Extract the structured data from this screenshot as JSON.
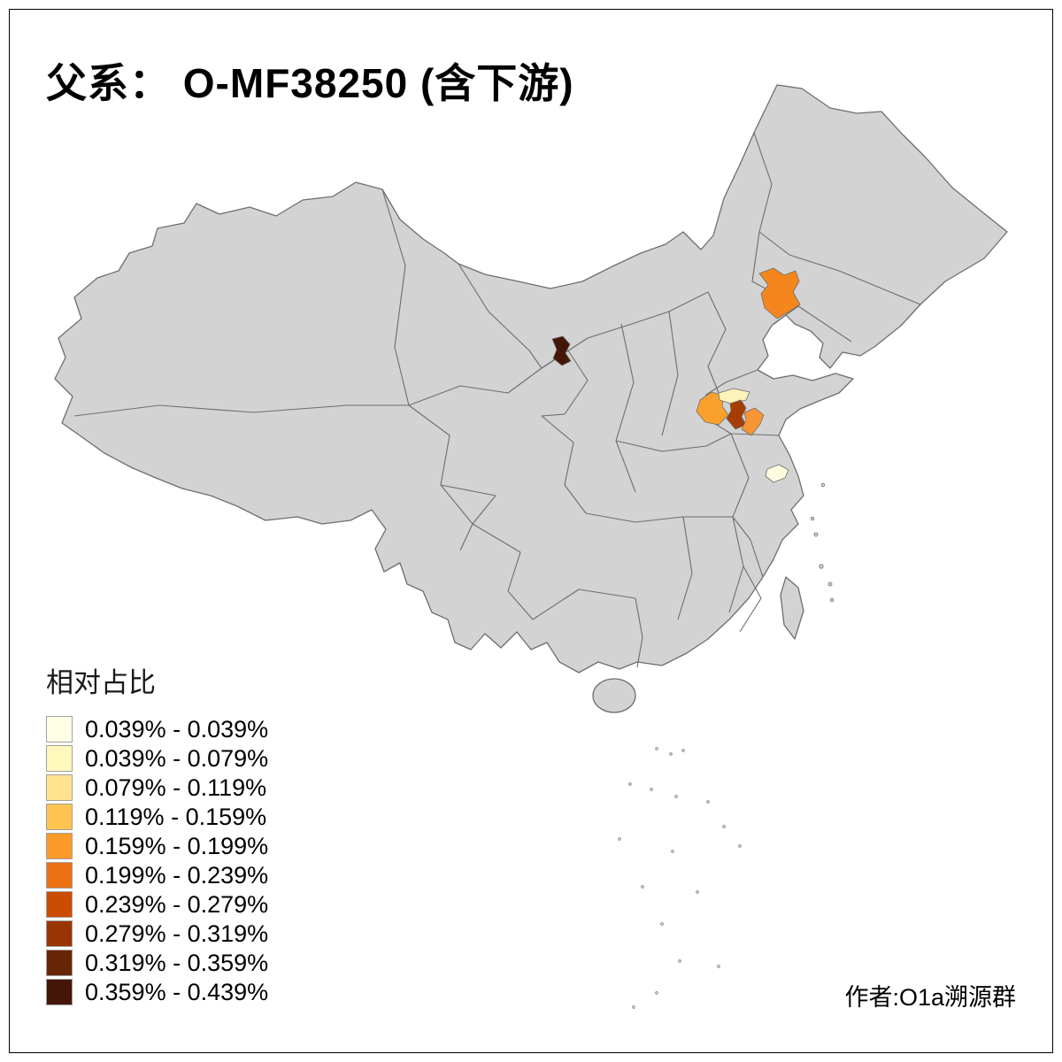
{
  "title": "父系： O-MF38250 (含下游)",
  "legend": {
    "title": "相对占比",
    "bins": [
      {
        "label": "0.039% - 0.039%",
        "color": "#FFFFE5"
      },
      {
        "label": "0.039% - 0.079%",
        "color": "#FFF7BC"
      },
      {
        "label": "0.079% - 0.119%",
        "color": "#FEE391"
      },
      {
        "label": "0.119% - 0.159%",
        "color": "#FEC44F"
      },
      {
        "label": "0.159% - 0.199%",
        "color": "#FB9A29"
      },
      {
        "label": "0.199% - 0.239%",
        "color": "#EC7014"
      },
      {
        "label": "0.239% - 0.279%",
        "color": "#CC4C02"
      },
      {
        "label": "0.279% - 0.319%",
        "color": "#993404"
      },
      {
        "label": "0.319% - 0.359%",
        "color": "#662506"
      },
      {
        "label": "0.359% - 0.439%",
        "color": "#451607"
      }
    ]
  },
  "credit": "作者:O1a溯源群",
  "map": {
    "land_fill": "#D3D3D3",
    "border_color": "#6E6E6E",
    "frame_color": "#000000",
    "regions": [
      {
        "id": "region-1",
        "color": "#F5861D"
      },
      {
        "id": "region-2",
        "color": "#451607"
      },
      {
        "id": "region-3",
        "color": "#FBA02C"
      },
      {
        "id": "region-4",
        "color": "#FBF3B9"
      },
      {
        "id": "region-5",
        "color": "#A63E03"
      },
      {
        "id": "region-6",
        "color": "#F79433"
      },
      {
        "id": "region-7",
        "color": "#FEFBE0"
      }
    ]
  }
}
